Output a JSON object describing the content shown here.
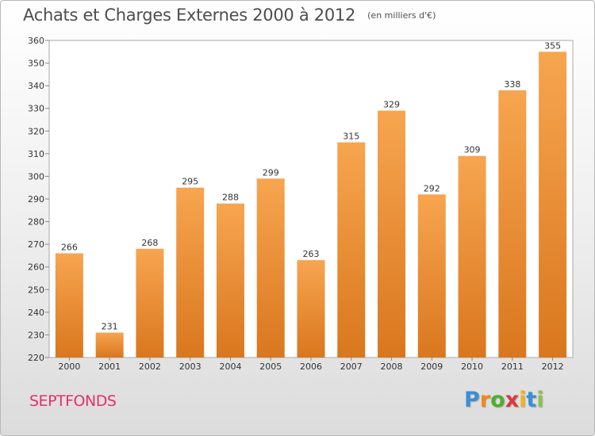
{
  "title": "Achats et Charges Externes 2000 à 2012",
  "subtitle": "(en milliers d'€)",
  "commune": "SEPTFONDS",
  "logo": {
    "letters": [
      "P",
      "r",
      "o",
      "x",
      "i",
      "t",
      "i"
    ],
    "colors": [
      "#3a8fd6",
      "#f0891a",
      "#4caf2e",
      "#e2353c",
      "#f0b21a",
      "#3a8fd6",
      "#8bc34a"
    ]
  },
  "colors": {
    "bar_light": "#f7a550",
    "bar_dark": "#d9771e",
    "text": "#333333"
  },
  "chart_data": {
    "type": "bar",
    "title": "Achats et Charges Externes 2000 à 2012",
    "subtitle": "(en milliers d'€)",
    "categories": [
      "2000",
      "2001",
      "2002",
      "2003",
      "2004",
      "2005",
      "2006",
      "2007",
      "2008",
      "2009",
      "2010",
      "2011",
      "2012"
    ],
    "values": [
      266,
      231,
      268,
      295,
      288,
      299,
      263,
      315,
      329,
      292,
      309,
      338,
      355
    ],
    "ylim": [
      220,
      360
    ],
    "yticks": [
      220,
      230,
      240,
      250,
      260,
      270,
      280,
      290,
      300,
      310,
      320,
      330,
      340,
      350,
      360
    ],
    "grid": false,
    "data_labels": true
  }
}
